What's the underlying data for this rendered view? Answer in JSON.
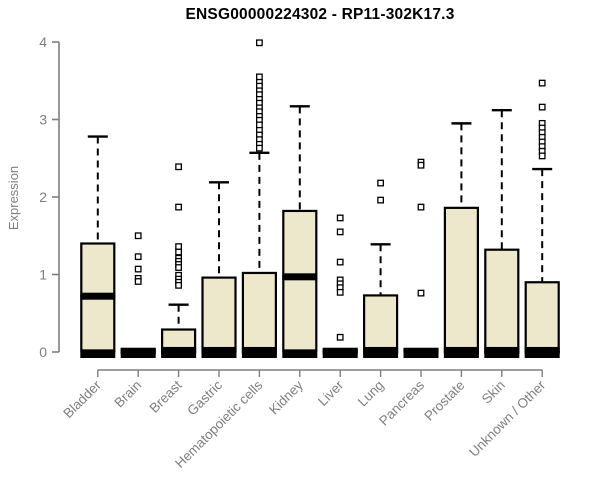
{
  "chart_data": {
    "type": "boxplot",
    "title": "ENSG00000224302 - RP11-302K17.3",
    "ylabel": "Expression",
    "xlabel": "",
    "ylim": [
      0,
      4
    ],
    "yticks": [
      0,
      1,
      2,
      3,
      4
    ],
    "grid": false,
    "legend": false,
    "categories": [
      "Bladder",
      "Brain",
      "Breast",
      "Gastric",
      "Hematopoietic cells",
      "Kidney",
      "Liver",
      "Lung",
      "Pancreas",
      "Prostate",
      "Skin",
      "Unknown / Other"
    ],
    "series": [
      {
        "category": "Bladder",
        "q1": 0.02,
        "median": 0.72,
        "q3": 1.4,
        "whisker_low": 0,
        "whisker_high": 2.78,
        "outliers": []
      },
      {
        "category": "Brain",
        "q1": 0,
        "median": 0.01,
        "q3": 0.03,
        "whisker_low": 0,
        "whisker_high": 0.03,
        "outliers": [
          1.5,
          1.23,
          1.07,
          0.95,
          0.91
        ]
      },
      {
        "category": "Breast",
        "q1": 0,
        "median": 0.02,
        "q3": 0.29,
        "whisker_low": 0,
        "whisker_high": 0.61,
        "outliers": [
          2.39,
          1.87,
          1.36,
          1.29,
          1.21,
          1.17,
          1.13,
          1.09,
          0.99,
          0.94,
          0.9,
          0.86
        ]
      },
      {
        "category": "Gastric",
        "q1": 0,
        "median": 0.02,
        "q3": 0.96,
        "whisker_low": 0,
        "whisker_high": 2.19,
        "outliers": []
      },
      {
        "category": "Hematopoietic cells",
        "q1": 0,
        "median": 0.02,
        "q3": 1.02,
        "whisker_low": 0,
        "whisker_high": 2.57,
        "outliers": [
          3.99,
          3.55,
          3.48,
          3.43,
          3.37,
          3.32,
          3.26,
          3.21,
          3.15,
          3.1,
          3.04,
          2.99,
          2.93,
          2.86,
          2.8,
          2.74,
          2.68,
          2.63
        ]
      },
      {
        "category": "Kidney",
        "q1": 0.02,
        "median": 0.97,
        "q3": 1.82,
        "whisker_low": 0,
        "whisker_high": 3.17,
        "outliers": []
      },
      {
        "category": "Liver",
        "q1": 0,
        "median": 0.01,
        "q3": 0.03,
        "whisker_low": 0,
        "whisker_high": 0.03,
        "outliers": [
          1.73,
          1.55,
          1.16,
          0.93,
          0.88,
          0.83,
          0.77,
          0.19
        ]
      },
      {
        "category": "Lung",
        "q1": 0,
        "median": 0.02,
        "q3": 0.73,
        "whisker_low": 0,
        "whisker_high": 1.39,
        "outliers": [
          2.18,
          1.96
        ]
      },
      {
        "category": "Pancreas",
        "q1": 0,
        "median": 0.01,
        "q3": 0.03,
        "whisker_low": 0,
        "whisker_high": 0.03,
        "outliers": [
          2.45,
          2.41,
          1.87,
          0.76
        ]
      },
      {
        "category": "Prostate",
        "q1": 0,
        "median": 0.02,
        "q3": 1.86,
        "whisker_low": 0,
        "whisker_high": 2.95,
        "outliers": []
      },
      {
        "category": "Skin",
        "q1": 0,
        "median": 0.02,
        "q3": 1.32,
        "whisker_low": 0,
        "whisker_high": 3.12,
        "outliers": []
      },
      {
        "category": "Unknown / Other",
        "q1": 0,
        "median": 0.02,
        "q3": 0.9,
        "whisker_low": 0,
        "whisker_high": 2.36,
        "outliers": [
          3.47,
          3.16,
          2.95,
          2.89,
          2.83,
          2.77,
          2.71,
          2.65,
          2.59,
          2.53
        ]
      }
    ],
    "colors": {
      "box_fill": "#EDE7CC",
      "box_border": "#000000",
      "median": "#000000",
      "whisker": "#000000",
      "outlier": "#000000",
      "axis": "#7f7f7f",
      "tick_label": "#7f7f7f",
      "title": "#000000",
      "background": "#FFFFFF"
    }
  }
}
